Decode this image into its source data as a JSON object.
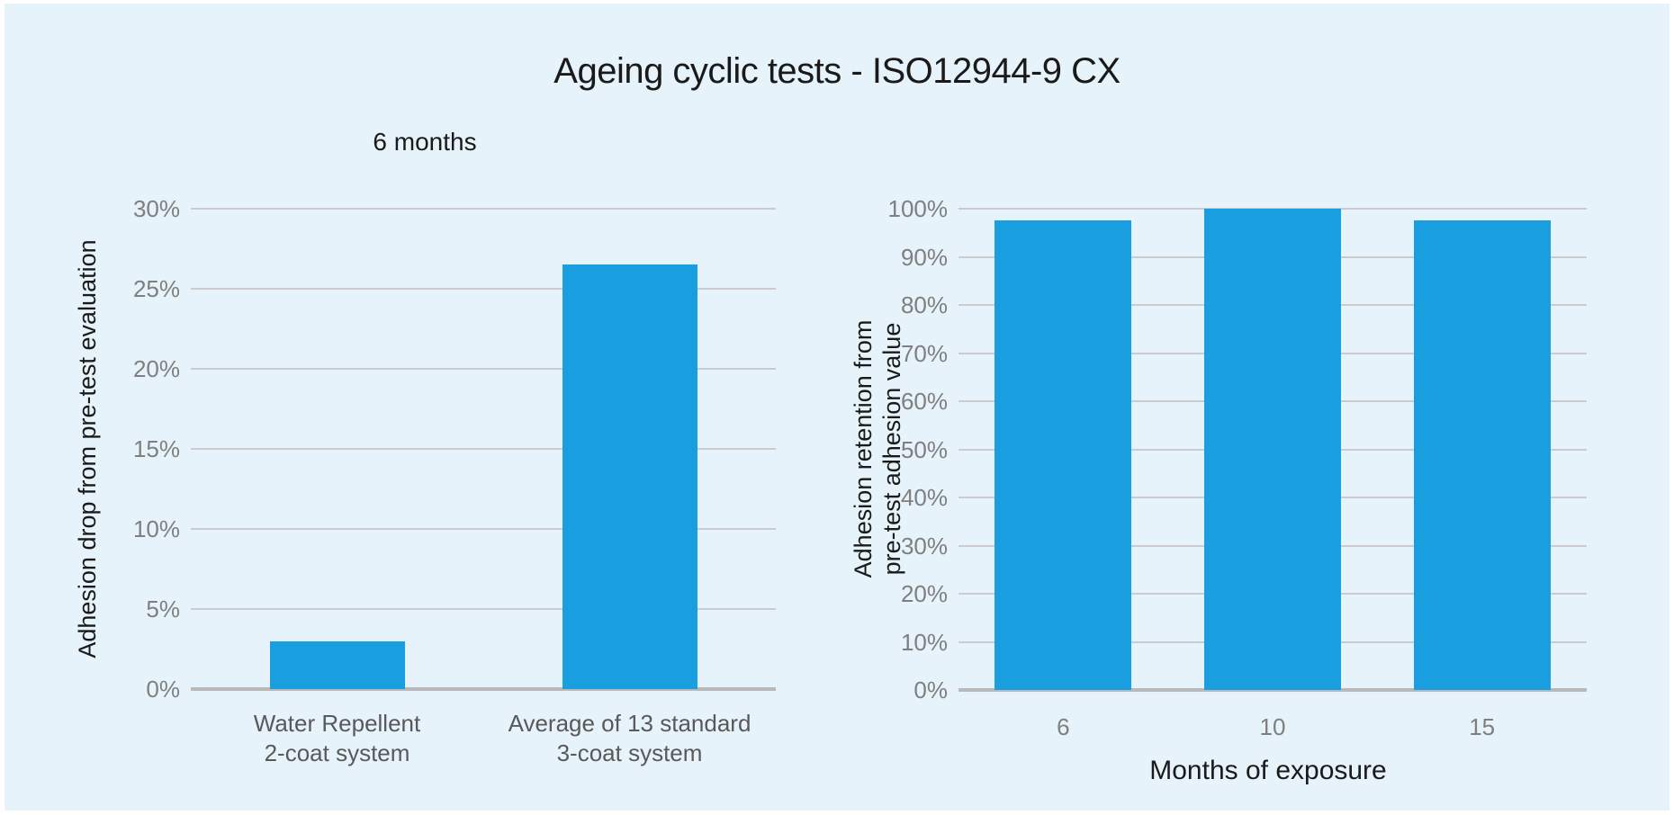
{
  "title": "Ageing cyclic tests - ISO12944-9 CX",
  "colors": {
    "panel_background": "#e6f3fb",
    "bar": "#199fe0",
    "gridline": "#cbcbcb",
    "axis_line": "#b9b9b9",
    "tick_label": "#7f7f7f",
    "category_label_left": "#595959",
    "category_label_right": "#7f7f7f",
    "text": "#1a1a1a"
  },
  "chart_data": [
    {
      "type": "bar",
      "title": "6 months",
      "categories": [
        "Water Repellent\n2-coat system",
        "Average of 13 standard\n3-coat system"
      ],
      "values": [
        3,
        26.5
      ],
      "unit": "%",
      "xlabel": "",
      "ylabel": "Adhesion drop from pre-test evaluation",
      "ylim": [
        0,
        30
      ],
      "ytick_step": 5,
      "grid": true,
      "legend": false
    },
    {
      "type": "bar",
      "title": "",
      "categories": [
        "6",
        "10",
        "15"
      ],
      "values": [
        97.5,
        100,
        97.5
      ],
      "unit": "%",
      "xlabel": "Months of exposure",
      "ylabel": "Adhesion retention from\npre-test adhesion value",
      "ylim": [
        0,
        100
      ],
      "ytick_step": 10,
      "grid": true,
      "legend": false
    }
  ]
}
